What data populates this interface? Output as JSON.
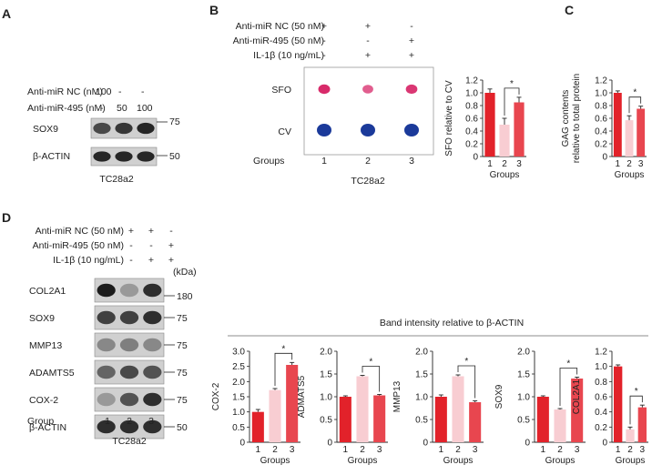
{
  "colors": {
    "g1": "#e2222a",
    "g2": "#f8cdd2",
    "g3": "#e8464f",
    "dot_sfo": "#d82a6a",
    "dot_cv": "#1b3a9a",
    "blot_bg": "#d0d0d0",
    "band": "#1c1c1c"
  },
  "panel_a": {
    "letter": "A",
    "rows": [
      {
        "label": "Anti-miR NC (nM)",
        "values": [
          "100",
          "-",
          "-"
        ]
      },
      {
        "label": "Anti-miR-495 (nM)",
        "values": [
          "-",
          "50",
          "100"
        ]
      }
    ],
    "blots": [
      {
        "label": "SOX9",
        "marker": "75",
        "intensity": [
          0.75,
          0.85,
          0.95
        ]
      },
      {
        "label": "β-ACTIN",
        "marker": "50",
        "intensity": [
          0.95,
          0.95,
          0.95
        ]
      }
    ],
    "cell_line": "TC28a2"
  },
  "panel_b": {
    "letter": "B",
    "rows": [
      {
        "label": "Anti-miR NC (50 nM)",
        "values": [
          "+",
          "+",
          "-"
        ]
      },
      {
        "label": "Anti-miR-495 (50 nM)",
        "values": [
          "-",
          "-",
          "+"
        ]
      },
      {
        "label": "IL-1β (10 ng/mL)",
        "values": [
          "-",
          "+",
          "+"
        ]
      }
    ],
    "dot_rows": [
      "SFO",
      "CV"
    ],
    "sfo_intensity": [
      1.0,
      0.6,
      0.9
    ],
    "groups_label": "Groups",
    "groups": [
      "1",
      "2",
      "3"
    ],
    "cell_line": "TC28a2"
  },
  "panel_c": {
    "letter": "C"
  },
  "panel_d": {
    "letter": "D",
    "rows": [
      {
        "label": "Anti-miR NC (50 nM)",
        "values": [
          "+",
          "+",
          "-"
        ]
      },
      {
        "label": "Anti-miR-495 (50 nM)",
        "values": [
          "-",
          "-",
          "+"
        ]
      },
      {
        "label": "IL-1β (10 ng/mL)",
        "values": [
          "-",
          "+",
          "+"
        ]
      }
    ],
    "kda": "(kDa)",
    "blots": [
      {
        "label": "COL2A1",
        "marker": "180",
        "intensity": [
          1.0,
          0.3,
          0.9
        ]
      },
      {
        "label": "SOX9",
        "marker": "75",
        "intensity": [
          0.8,
          0.8,
          0.9
        ]
      },
      {
        "label": "MMP13",
        "marker": "75",
        "intensity": [
          0.4,
          0.45,
          0.4
        ]
      },
      {
        "label": "ADAMTS5",
        "marker": "75",
        "intensity": [
          0.6,
          0.75,
          0.7
        ]
      },
      {
        "label": "COX-2",
        "marker": "75",
        "intensity": [
          0.3,
          0.7,
          0.9
        ]
      },
      {
        "label": "β-ACTIN",
        "marker": "50",
        "intensity": [
          0.9,
          0.9,
          0.9
        ]
      }
    ],
    "group_label": "Group",
    "groups": [
      "1",
      "2",
      "3"
    ],
    "cell_line": "TC28a2",
    "band_header": "Band intensity relative to β-ACTIN"
  },
  "chart_data": [
    {
      "id": "sfo",
      "type": "bar",
      "categories": [
        "1",
        "2",
        "3"
      ],
      "values": [
        1.0,
        0.5,
        0.85
      ],
      "errors": [
        0.06,
        0.1,
        0.08
      ],
      "ylabel": "SFO relative to CV",
      "xlabel": "Groups",
      "ylim": [
        0,
        1.2
      ],
      "yticks": [
        0,
        0.2,
        0.4,
        0.6,
        0.8,
        1.0,
        1.2
      ],
      "yticklabels": [
        "0",
        "0.2",
        "0.4",
        "0.6",
        "0.8",
        "1.0",
        "1.2"
      ],
      "significance": [
        {
          "from": 2,
          "to": 3,
          "label": "*"
        }
      ]
    },
    {
      "id": "gag",
      "type": "bar",
      "categories": [
        "1",
        "2",
        "3"
      ],
      "values": [
        1.0,
        0.57,
        0.75
      ],
      "errors": [
        0.03,
        0.07,
        0.04
      ],
      "ylabel": "GAG contents relative to total protein",
      "xlabel": "Groups",
      "ylim": [
        0,
        1.2
      ],
      "yticks": [
        0,
        0.2,
        0.4,
        0.6,
        0.8,
        1.0,
        1.2
      ],
      "yticklabels": [
        "0",
        "0.2",
        "0.4",
        "0.6",
        "0.8",
        "1.0",
        "1.2"
      ],
      "significance": [
        {
          "from": 2,
          "to": 3,
          "label": "*"
        }
      ]
    },
    {
      "id": "cox2",
      "type": "bar",
      "categories": [
        "1",
        "2",
        "3"
      ],
      "values": [
        1.0,
        1.72,
        2.55
      ],
      "errors": [
        0.08,
        0.05,
        0.08
      ],
      "ylabel": "COX-2",
      "xlabel": "Groups",
      "ylim": [
        0,
        3.0
      ],
      "yticks": [
        0,
        0.5,
        1.0,
        1.5,
        2.0,
        2.5,
        3.0
      ],
      "yticklabels": [
        "0",
        "0.5",
        "1.0",
        "1.5",
        "2.0",
        "2.5",
        "3.0"
      ],
      "significance": [
        {
          "from": 2,
          "to": 3,
          "label": "*"
        }
      ]
    },
    {
      "id": "adamts5",
      "type": "bar",
      "categories": [
        "1",
        "2",
        "3"
      ],
      "values": [
        1.0,
        1.45,
        1.03
      ],
      "errors": [
        0.02,
        0.02,
        0.02
      ],
      "ylabel": "ADMATS5",
      "xlabel": "Groups",
      "ylim": [
        0,
        2.0
      ],
      "yticks": [
        0,
        0.5,
        1.0,
        1.5,
        2.0
      ],
      "yticklabels": [
        "0",
        "0.5",
        "1.0",
        "1.5",
        "2.0"
      ],
      "significance": [
        {
          "from": 2,
          "to": 3,
          "label": "*"
        }
      ]
    },
    {
      "id": "mmp13",
      "type": "bar",
      "categories": [
        "1",
        "2",
        "3"
      ],
      "values": [
        1.0,
        1.45,
        0.88
      ],
      "errors": [
        0.04,
        0.03,
        0.03
      ],
      "ylabel": "MMP13",
      "xlabel": "Groups",
      "ylim": [
        0,
        2.0
      ],
      "yticks": [
        0,
        0.5,
        1.0,
        1.5,
        2.0
      ],
      "yticklabels": [
        "0",
        "0.5",
        "1.0",
        "1.5",
        "2.0"
      ],
      "significance": [
        {
          "from": 2,
          "to": 3,
          "label": "*"
        }
      ]
    },
    {
      "id": "sox9",
      "type": "bar",
      "categories": [
        "1",
        "2",
        "3"
      ],
      "values": [
        1.0,
        0.72,
        1.4
      ],
      "errors": [
        0.02,
        0.02,
        0.03
      ],
      "ylabel": "SOX9",
      "xlabel": "Groups",
      "ylim": [
        0,
        2.0
      ],
      "yticks": [
        0,
        0.5,
        1.0,
        1.5,
        2.0
      ],
      "yticklabels": [
        "0",
        "0.5",
        "1.0",
        "1.5",
        "2.0"
      ],
      "significance": [
        {
          "from": 2,
          "to": 3,
          "label": "*"
        }
      ]
    },
    {
      "id": "col2a1",
      "type": "bar",
      "categories": [
        "1",
        "2",
        "3"
      ],
      "values": [
        1.0,
        0.17,
        0.46
      ],
      "errors": [
        0.02,
        0.03,
        0.03
      ],
      "ylabel": "COL2A1",
      "xlabel": "Groups",
      "ylim": [
        0,
        1.2
      ],
      "yticks": [
        0,
        0.2,
        0.4,
        0.6,
        0.8,
        1.0,
        1.2
      ],
      "yticklabels": [
        "0",
        "0.2",
        "0.4",
        "0.6",
        "0.8",
        "1.0",
        "1.2"
      ],
      "significance": [
        {
          "from": 2,
          "to": 3,
          "label": "*"
        }
      ]
    }
  ]
}
